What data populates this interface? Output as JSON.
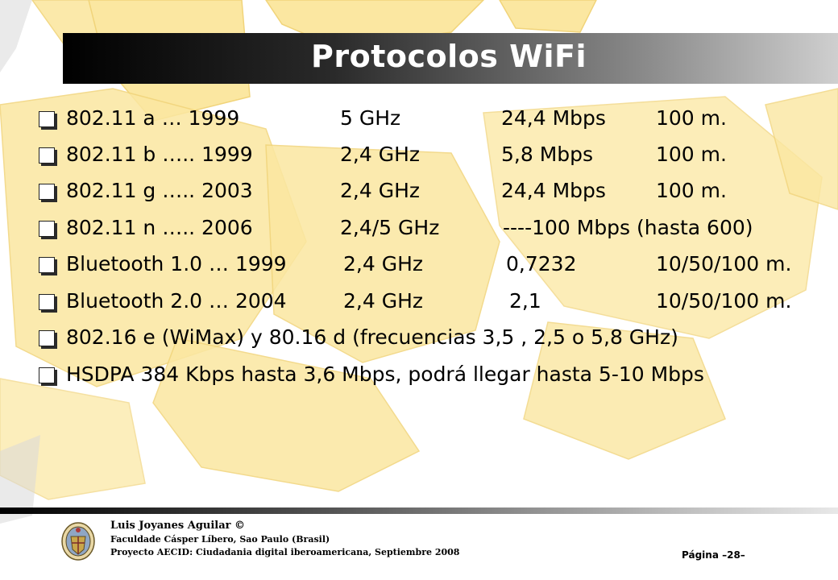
{
  "slide": {
    "title": "Protocolos  WiFi"
  },
  "rows": [
    {
      "cells": [
        "802.11 a   … 1999",
        "5 GHz",
        "24,4 Mbps",
        "100 m."
      ]
    },
    {
      "cells": [
        "802.11 b ….. 1999",
        "2,4 GHz",
        "5,8 Mbps",
        "100 m."
      ]
    },
    {
      "cells": [
        "802.11 g ….. 2003",
        "2,4 GHz",
        "24,4 Mbps",
        "100 m."
      ]
    },
    {
      "cells": [
        "802.11 n ….. 2006",
        "2,4/5 GHz",
        "----100 Mbps (hasta 600)"
      ]
    },
    {
      "cells": [
        "Bluetooth 1.0 … 1999",
        "2,4 GHz",
        "0,7232",
        "10/50/100  m."
      ]
    },
    {
      "cells": [
        "Bluetooth 2.0 … 2004",
        "2,4 GHz",
        "2,1",
        "10/50/100  m."
      ]
    },
    {
      "cells": [
        "802.16 e (WiMax) y 80.16 d (frecuencias 3,5 , 2,5 o 5,8 GHz)"
      ]
    },
    {
      "cells": [
        " HSDPA    384 Kbps  hasta 3,6 Mbps, podrá llegar hasta 5-10 Mbps"
      ]
    }
  ],
  "footer": {
    "author": "Luis Joyanes Aguilar ©",
    "line2": "Faculdade Cásper Líbero, Sao Paulo (Brasil)",
    "line3": "Proyecto AECID: Ciudadania digital iberoamericana, Septiembre 2008",
    "page": "Página  –28–"
  },
  "colors": {
    "background_shapes": "#fbe7a1",
    "title_bar_dark": "#000000",
    "title_text": "#ffffff"
  },
  "icons": [
    "checkbox-bullet-icon",
    "university-seal-icon"
  ]
}
